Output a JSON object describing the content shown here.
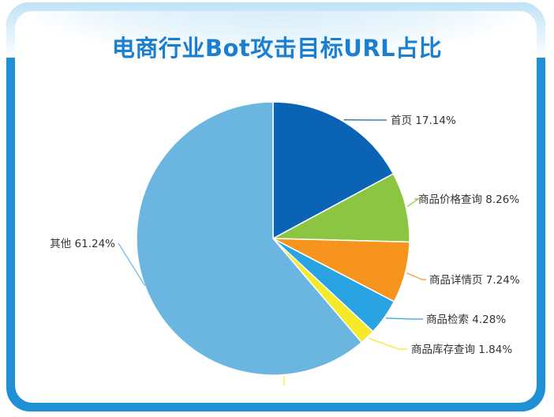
{
  "chart_data": {
    "type": "pie",
    "title": "电商行业Bot攻击目标URL占比",
    "slices": [
      {
        "name": "首页",
        "value": 17.14,
        "label": "首页 17.14%",
        "color": "#0b63b5"
      },
      {
        "name": "商品价格查询",
        "value": 8.26,
        "label": "商品价格查询 8.26%",
        "color": "#8bc542"
      },
      {
        "name": "商品详情页",
        "value": 7.24,
        "label": "商品详情页 7.24%",
        "color": "#f7941d"
      },
      {
        "name": "商品检索",
        "value": 4.28,
        "label": "商品检索 4.28%",
        "color": "#29a3e1"
      },
      {
        "name": "商品库存查询",
        "value": 1.84,
        "label": "商品库存查询 1.84%",
        "color": "#f4ea2a"
      },
      {
        "name": "其他",
        "value": 61.24,
        "label": "其他 61.24%",
        "color": "#6bb6e0"
      }
    ]
  }
}
